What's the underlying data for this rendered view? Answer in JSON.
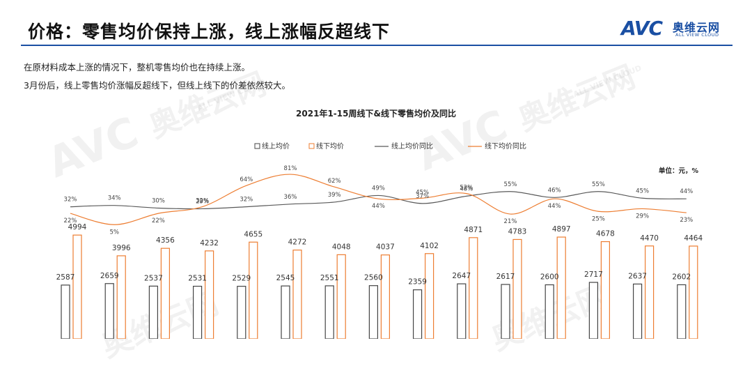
{
  "header": {
    "title": "价格：零售均价保持上涨，线上涨幅反超线下",
    "logo_mark": "AVC",
    "logo_cn": "奥维云网",
    "logo_en": "ALL VIEW CLOUD"
  },
  "paragraphs": [
    "在原材料成本上涨的情况下，整机零售均价也在持续上涨。",
    "3月份后，线上零售均价涨幅反超线下，但线上线下的价差依然较大。"
  ],
  "watermark": {
    "mark": "AVC",
    "cn": "奥维云网",
    "en": "ALL VIEW CLOUD"
  },
  "colors": {
    "online": "#444444",
    "offline": "#ED7D31",
    "accent": "#1a4fa3"
  },
  "chart_data": {
    "type": "bar",
    "title": "2021年1-15周线下&线下零售均价及同比",
    "unit": "单位：元，%",
    "legend": [
      "线上均价",
      "线下均价",
      "线上均价同比",
      "线下均价同比"
    ],
    "legend_placement": "top-center",
    "grid": false,
    "series": [
      {
        "name": "线上均价",
        "kind": "bar",
        "values": [
          2587,
          2659,
          2537,
          2531,
          2529,
          2545,
          2551,
          2560,
          2359,
          2647,
          2617,
          2600,
          2717,
          2637,
          2602
        ]
      },
      {
        "name": "线下均价",
        "kind": "bar",
        "values": [
          4994,
          3996,
          4356,
          4232,
          4655,
          4272,
          4048,
          4037,
          4102,
          4871,
          4783,
          4897,
          4678,
          4470,
          4464
        ]
      },
      {
        "name": "线上均价同比",
        "kind": "line",
        "unit": "%",
        "values": [
          32,
          34,
          30,
          29,
          32,
          36,
          39,
          49,
          37,
          48,
          55,
          46,
          55,
          45,
          44
        ]
      },
      {
        "name": "线下均价同比",
        "kind": "line",
        "unit": "%",
        "values": [
          22,
          5,
          22,
          32,
          64,
          81,
          62,
          44,
          45,
          52,
          21,
          44,
          25,
          29,
          23
        ]
      }
    ]
  }
}
